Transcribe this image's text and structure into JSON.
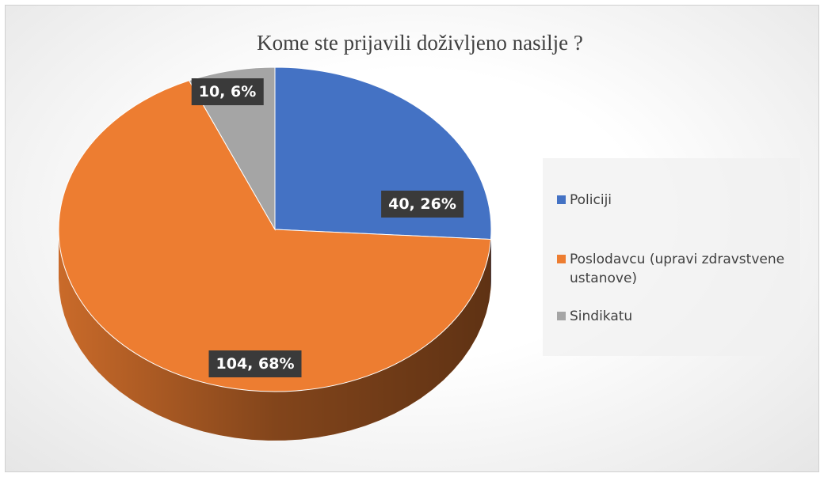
{
  "chart_data": {
    "type": "pie",
    "title": "Kome ste prijavili doživljeno nasilje ?",
    "categories": [
      "Policiji",
      "Poslodavcu (upravi zdravstvene ustanove)",
      "Sindikatu"
    ],
    "values": [
      40,
      104,
      10
    ],
    "value_labels": [
      "40, 26%",
      "104, 68%",
      "10, 6%"
    ],
    "colors": [
      "#4472c4",
      "#ed7d31",
      "#a5a5a5"
    ],
    "legend": "right"
  }
}
